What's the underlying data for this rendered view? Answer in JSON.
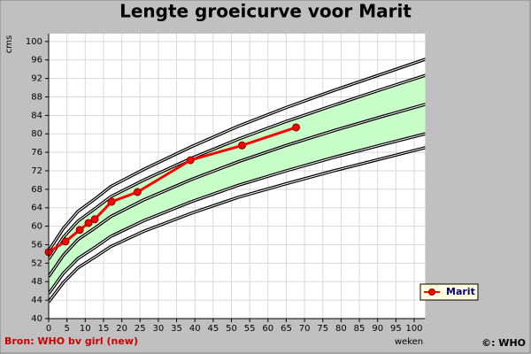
{
  "chart_data": {
    "type": "line",
    "title": "Lengte groeicurve voor Marit",
    "x_label": "weken",
    "y_label": "cms",
    "source": "Bron: WHO bv girl (new)",
    "copyright": "©: WHO",
    "xlim": [
      0,
      103
    ],
    "ylim": [
      40,
      101.7
    ],
    "xticks": [
      0,
      5,
      10,
      15,
      20,
      25,
      30,
      35,
      40,
      45,
      50,
      55,
      60,
      65,
      70,
      75,
      80,
      85,
      90,
      95,
      100
    ],
    "yticks": [
      40,
      44,
      48,
      52,
      56,
      60,
      64,
      68,
      72,
      76,
      80,
      84,
      88,
      92,
      96,
      100
    ],
    "grid": true,
    "reference_x": [
      0,
      4,
      8,
      13,
      17,
      26,
      39,
      52,
      65,
      78,
      91,
      104
    ],
    "reference_curves": [
      {
        "color": "#000000",
        "values": [
          54.7,
          59.5,
          63.2,
          66.1,
          68.6,
          72.3,
          77.2,
          81.7,
          85.7,
          89.4,
          92.9,
          96.4
        ]
      },
      {
        "color": "#000000",
        "values": [
          52.9,
          57.6,
          61.1,
          64.0,
          66.4,
          70.0,
          74.7,
          78.9,
          82.7,
          86.2,
          89.6,
          92.9
        ]
      },
      {
        "color": "#000000",
        "values": [
          49.1,
          53.7,
          57.1,
          59.8,
          62.1,
          65.7,
          70.1,
          74.0,
          77.5,
          80.7,
          83.7,
          86.6
        ]
      },
      {
        "color": "#000000",
        "values": [
          45.4,
          49.8,
          53.0,
          55.6,
          57.8,
          61.2,
          65.3,
          68.9,
          72.0,
          74.9,
          77.6,
          80.2
        ]
      },
      {
        "color": "#000000",
        "values": [
          43.6,
          47.8,
          51.0,
          53.5,
          55.6,
          58.9,
          62.8,
          66.3,
          69.2,
          72.0,
          74.6,
          77.2
        ]
      }
    ],
    "band_between": [
      1,
      3
    ],
    "band_color": "#c8ffc8",
    "legend": "right",
    "series": [
      {
        "name": "Marit",
        "color": "#ff0000",
        "x": [
          0,
          4.6,
          8.5,
          10.9,
          12.6,
          17.2,
          24.3,
          38.8,
          52.9,
          67.7
        ],
        "values": [
          54.4,
          56.7,
          59.2,
          60.7,
          61.5,
          65.3,
          67.4,
          74.3,
          77.5,
          81.4
        ]
      }
    ]
  }
}
